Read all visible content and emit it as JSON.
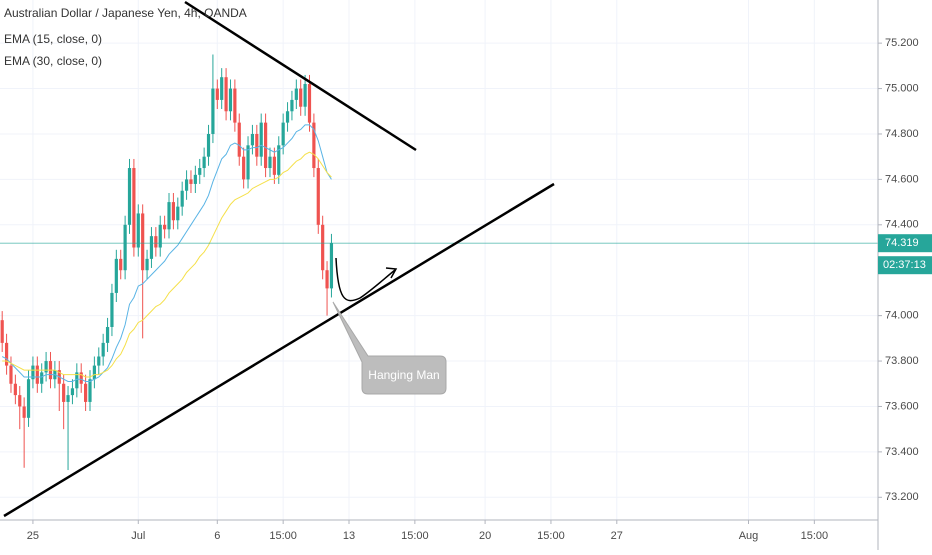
{
  "chart_data": {
    "type": "candlestick",
    "title": "Australian Dollar / Japanese Yen, 4h, OANDA",
    "x": [
      0,
      1,
      2,
      3,
      4,
      5,
      6,
      7,
      8,
      9,
      10,
      11,
      12,
      13,
      14,
      15,
      16,
      17,
      18,
      19,
      20,
      21,
      22,
      23,
      24,
      25,
      26,
      27,
      28,
      29,
      30,
      31,
      32,
      33,
      34,
      35,
      36,
      37,
      38,
      39,
      40,
      41,
      42,
      43,
      44,
      45,
      46,
      47,
      48,
      49,
      50,
      51,
      52,
      53,
      54,
      55,
      56,
      57,
      58,
      59,
      60,
      61,
      62,
      63,
      64,
      65,
      66,
      67,
      68,
      69,
      70,
      71,
      72,
      73,
      74,
      75
    ],
    "open": [
      73.98,
      73.88,
      73.78,
      73.7,
      73.65,
      73.6,
      73.55,
      73.72,
      73.78,
      73.7,
      73.75,
      73.8,
      73.72,
      73.76,
      73.7,
      73.62,
      73.65,
      73.68,
      73.75,
      73.7,
      73.62,
      73.72,
      73.78,
      73.82,
      73.88,
      73.95,
      74.1,
      74.25,
      74.2,
      74.4,
      74.65,
      74.3,
      74.45,
      74.2,
      74.25,
      74.35,
      74.3,
      74.4,
      74.38,
      74.5,
      74.42,
      74.48,
      74.55,
      74.6,
      74.58,
      74.62,
      74.65,
      74.7,
      74.8,
      75.0,
      74.95,
      75.05,
      74.9,
      75.0,
      74.85,
      74.7,
      74.6,
      74.75,
      74.8,
      74.7,
      74.85,
      74.65,
      74.7,
      74.62,
      74.75,
      74.85,
      74.9,
      74.95,
      75.0,
      74.92,
      75.02,
      74.85,
      74.65,
      74.4,
      74.2,
      74.12
    ],
    "high": [
      74.02,
      73.92,
      73.82,
      73.74,
      73.69,
      73.64,
      73.76,
      73.82,
      73.82,
      73.79,
      73.84,
      73.84,
      73.8,
      73.8,
      73.74,
      73.69,
      73.72,
      73.79,
      73.79,
      73.74,
      73.76,
      73.82,
      73.86,
      73.92,
      73.99,
      74.14,
      74.29,
      74.29,
      74.44,
      74.69,
      74.69,
      74.49,
      74.49,
      74.29,
      74.39,
      74.39,
      74.44,
      74.44,
      74.54,
      74.54,
      74.52,
      74.59,
      74.64,
      74.64,
      74.66,
      74.69,
      74.74,
      74.84,
      75.15,
      75.04,
      75.09,
      75.09,
      75.04,
      75.04,
      74.89,
      74.74,
      74.79,
      74.84,
      74.84,
      74.89,
      74.89,
      74.74,
      74.74,
      74.79,
      74.89,
      74.94,
      74.99,
      75.04,
      75.04,
      75.06,
      75.06,
      74.89,
      74.69,
      74.44,
      74.24,
      74.36
    ],
    "low": [
      73.84,
      73.74,
      73.66,
      73.61,
      73.5,
      73.33,
      73.51,
      73.68,
      73.66,
      73.66,
      73.71,
      73.68,
      73.68,
      73.58,
      73.5,
      73.32,
      73.61,
      73.64,
      73.66,
      73.58,
      73.58,
      73.68,
      73.74,
      73.78,
      73.84,
      73.91,
      74.06,
      74.16,
      74.16,
      74.36,
      74.26,
      74.26,
      73.9,
      74.16,
      74.21,
      74.26,
      74.26,
      74.34,
      74.34,
      74.38,
      74.38,
      74.44,
      74.51,
      74.54,
      74.54,
      74.58,
      74.61,
      74.66,
      74.76,
      74.91,
      74.91,
      74.86,
      74.86,
      74.81,
      74.66,
      74.56,
      74.56,
      74.71,
      74.66,
      74.66,
      74.61,
      74.61,
      74.58,
      74.58,
      74.71,
      74.81,
      74.86,
      74.91,
      74.88,
      74.88,
      74.81,
      74.61,
      74.36,
      74.16,
      74.0,
      74.08
    ],
    "close": [
      73.88,
      73.78,
      73.7,
      73.65,
      73.6,
      73.55,
      73.72,
      73.78,
      73.7,
      73.75,
      73.8,
      73.72,
      73.76,
      73.7,
      73.62,
      73.65,
      73.68,
      73.75,
      73.7,
      73.62,
      73.72,
      73.78,
      73.82,
      73.88,
      73.95,
      74.1,
      74.25,
      74.2,
      74.4,
      74.65,
      74.3,
      74.45,
      74.2,
      74.25,
      74.35,
      74.3,
      74.4,
      74.38,
      74.5,
      74.42,
      74.48,
      74.55,
      74.6,
      74.58,
      74.62,
      74.65,
      74.7,
      74.8,
      75.0,
      74.95,
      75.05,
      74.9,
      75.0,
      74.85,
      74.7,
      74.6,
      74.75,
      74.8,
      74.7,
      74.85,
      74.65,
      74.7,
      74.62,
      74.75,
      74.85,
      74.9,
      74.95,
      75.0,
      74.92,
      75.02,
      74.85,
      74.65,
      74.4,
      74.2,
      74.12,
      74.32
    ],
    "up_color": "#26a69a",
    "down_color": "#ef5350",
    "series": [
      {
        "name": "EMA (15, close, 0)",
        "color": "#5ab4e5",
        "values": [
          73.82,
          73.81,
          73.79,
          73.77,
          73.75,
          73.73,
          73.73,
          73.73,
          73.73,
          73.73,
          73.74,
          73.74,
          73.74,
          73.73,
          73.72,
          73.71,
          73.71,
          73.72,
          73.72,
          73.71,
          73.71,
          73.72,
          73.73,
          73.75,
          73.77,
          73.81,
          73.86,
          73.9,
          73.96,
          74.05,
          74.08,
          74.13,
          74.14,
          74.16,
          74.18,
          74.2,
          74.22,
          74.24,
          74.27,
          74.29,
          74.31,
          74.34,
          74.37,
          74.4,
          74.43,
          74.46,
          74.49,
          74.53,
          74.59,
          74.64,
          74.69,
          74.71,
          74.75,
          74.76,
          74.75,
          74.73,
          74.73,
          74.74,
          74.74,
          74.75,
          74.74,
          74.73,
          74.72,
          74.73,
          74.74,
          74.76,
          74.78,
          74.81,
          74.82,
          74.84,
          74.84,
          74.82,
          74.77,
          74.7,
          74.63,
          74.6
        ]
      },
      {
        "name": "EMA (30, close, 0)",
        "color": "#f5e04a",
        "values": [
          73.8,
          73.8,
          73.79,
          73.78,
          73.77,
          73.76,
          73.76,
          73.76,
          73.76,
          73.76,
          73.76,
          73.76,
          73.76,
          73.75,
          73.74,
          73.74,
          73.74,
          73.74,
          73.74,
          73.73,
          73.73,
          73.74,
          73.74,
          73.75,
          73.76,
          73.78,
          73.81,
          73.83,
          73.87,
          73.92,
          73.94,
          73.97,
          73.98,
          74.0,
          74.02,
          74.04,
          74.05,
          74.07,
          74.1,
          74.12,
          74.14,
          74.16,
          74.19,
          74.21,
          74.23,
          74.26,
          74.28,
          74.31,
          74.35,
          74.39,
          74.43,
          74.46,
          74.49,
          74.51,
          74.52,
          74.53,
          74.54,
          74.56,
          74.57,
          74.58,
          74.59,
          74.6,
          74.6,
          74.61,
          74.63,
          74.64,
          74.66,
          74.68,
          74.69,
          74.71,
          74.72,
          74.71,
          74.69,
          74.66,
          74.63,
          74.61
        ]
      }
    ],
    "last_price": 74.319,
    "countdown": "02:37:13",
    "annotation": "Hanging Man",
    "xlim": [
      -0.5,
      199.5
    ],
    "xticks": [
      {
        "value": 7,
        "label": "25"
      },
      {
        "value": 31,
        "label": "Jul"
      },
      {
        "value": 49,
        "label": "6"
      },
      {
        "value": 64,
        "label": "15:00"
      },
      {
        "value": 79,
        "label": "13"
      },
      {
        "value": 94,
        "label": "15:00"
      },
      {
        "value": 110,
        "label": "20"
      },
      {
        "value": 125,
        "label": "15:00"
      },
      {
        "value": 140,
        "label": "27"
      },
      {
        "value": 170,
        "label": "Aug"
      },
      {
        "value": 185,
        "label": "15:00"
      }
    ],
    "ylim": [
      73.1,
      75.39
    ],
    "yticks": [
      {
        "value": 73.2,
        "label": "73.200"
      },
      {
        "value": 73.4,
        "label": "73.400"
      },
      {
        "value": 73.6,
        "label": "73.600"
      },
      {
        "value": 73.8,
        "label": "73.800"
      },
      {
        "value": 74.0,
        "label": "74.000"
      },
      {
        "value": 74.4,
        "label": "74.400"
      },
      {
        "value": 74.6,
        "label": "74.600"
      },
      {
        "value": 74.8,
        "label": "74.800"
      },
      {
        "value": 75.0,
        "label": "75.000"
      },
      {
        "value": 75.2,
        "label": "75.200"
      }
    ],
    "grid": true
  }
}
